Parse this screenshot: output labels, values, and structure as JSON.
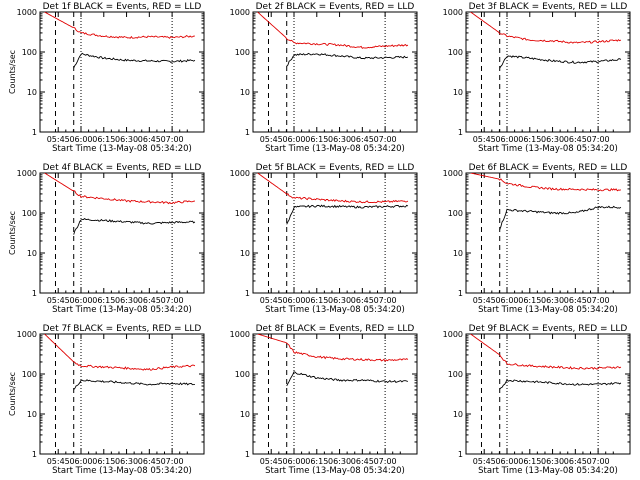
{
  "figure": {
    "ylabel": "Counts/sec",
    "xlabel": "Start Time (13-May-08 05:34:20)",
    "xticks": [
      "05:45",
      "06:00",
      "06:15",
      "06:30",
      "06:45",
      "07:00"
    ],
    "yticks": [
      "1",
      "10",
      "100",
      "1000"
    ],
    "colors": {
      "events": "#000000",
      "lld": "#e00000"
    }
  },
  "chart_data": [
    {
      "type": "line",
      "title": "Det 1f BLACK = Events, RED = LLD",
      "yscale": "log",
      "ylim": [
        1,
        1000
      ],
      "xlabel": "Start Time (13-May-08 05:34:20)",
      "ylabel": "Counts/sec",
      "series": [
        {
          "name": "Events",
          "color": "#000000",
          "x": [
            5.92,
            6.0,
            6.25,
            6.5,
            6.75,
            7.0,
            7.25
          ],
          "y": [
            40,
            90,
            70,
            62,
            60,
            58,
            62
          ]
        },
        {
          "name": "LLD",
          "color": "#e00000",
          "x": [
            5.6,
            5.92,
            6.0,
            6.25,
            6.5,
            6.75,
            7.0,
            7.25
          ],
          "y": [
            1000,
            400,
            300,
            250,
            230,
            240,
            230,
            250
          ]
        }
      ]
    },
    {
      "type": "line",
      "title": "Det 2f BLACK = Events, RED = LLD",
      "yscale": "log",
      "ylim": [
        1,
        1000
      ],
      "xlabel": "Start Time (13-May-08 05:34:20)",
      "ylabel": "Counts/sec",
      "series": [
        {
          "name": "Events",
          "color": "#000000",
          "x": [
            5.92,
            6.0,
            6.25,
            6.5,
            6.75,
            7.0,
            7.25
          ],
          "y": [
            45,
            85,
            90,
            80,
            70,
            72,
            75
          ]
        },
        {
          "name": "LLD",
          "color": "#e00000",
          "x": [
            5.6,
            5.92,
            6.0,
            6.25,
            6.5,
            6.75,
            7.0,
            7.25
          ],
          "y": [
            1000,
            220,
            170,
            160,
            150,
            130,
            140,
            150
          ]
        }
      ]
    },
    {
      "type": "line",
      "title": "Det 3f BLACK = Events, RED = LLD",
      "yscale": "log",
      "ylim": [
        1,
        1000
      ],
      "xlabel": "Start Time (13-May-08 05:34:20)",
      "ylabel": "Counts/sec",
      "series": [
        {
          "name": "Events",
          "color": "#000000",
          "x": [
            5.92,
            6.0,
            6.25,
            6.5,
            6.75,
            7.0,
            7.25
          ],
          "y": [
            40,
            80,
            70,
            60,
            55,
            58,
            65
          ]
        },
        {
          "name": "LLD",
          "color": "#e00000",
          "x": [
            5.6,
            5.92,
            6.0,
            6.25,
            6.5,
            6.75,
            7.0,
            7.25
          ],
          "y": [
            1000,
            300,
            250,
            200,
            190,
            170,
            180,
            200
          ]
        }
      ]
    },
    {
      "type": "line",
      "title": "Det 4f BLACK = Events, RED = LLD",
      "yscale": "log",
      "ylim": [
        1,
        1000
      ],
      "xlabel": "Start Time (13-May-08 05:34:20)",
      "ylabel": "Counts/sec",
      "series": [
        {
          "name": "Events",
          "color": "#000000",
          "x": [
            5.92,
            6.0,
            6.25,
            6.5,
            6.75,
            7.0,
            7.25
          ],
          "y": [
            30,
            70,
            65,
            60,
            55,
            58,
            60
          ]
        },
        {
          "name": "LLD",
          "color": "#e00000",
          "x": [
            5.6,
            5.92,
            6.0,
            6.25,
            6.5,
            6.75,
            7.0,
            7.25
          ],
          "y": [
            1000,
            350,
            260,
            230,
            200,
            190,
            180,
            200
          ]
        }
      ]
    },
    {
      "type": "line",
      "title": "Det 5f BLACK = Events, RED = LLD",
      "yscale": "log",
      "ylim": [
        1,
        1000
      ],
      "xlabel": "Start Time (13-May-08 05:34:20)",
      "ylabel": "Counts/sec",
      "series": [
        {
          "name": "Events",
          "color": "#000000",
          "x": [
            5.92,
            6.0,
            6.25,
            6.5,
            6.75,
            7.0,
            7.25
          ],
          "y": [
            50,
            140,
            150,
            145,
            140,
            145,
            150
          ]
        },
        {
          "name": "LLD",
          "color": "#e00000",
          "x": [
            5.6,
            5.92,
            6.0,
            6.25,
            6.5,
            6.75,
            7.0,
            7.25
          ],
          "y": [
            1000,
            300,
            240,
            220,
            200,
            190,
            190,
            200
          ]
        }
      ]
    },
    {
      "type": "line",
      "title": "Det 6f BLACK = Events, RED = LLD",
      "yscale": "log",
      "ylim": [
        1,
        1000
      ],
      "xlabel": "Start Time (13-May-08 05:34:20)",
      "ylabel": "Counts/sec",
      "series": [
        {
          "name": "Events",
          "color": "#000000",
          "x": [
            5.92,
            6.0,
            6.25,
            6.5,
            6.75,
            7.0,
            7.25
          ],
          "y": [
            40,
            120,
            110,
            100,
            100,
            140,
            140
          ]
        },
        {
          "name": "LLD",
          "color": "#e00000",
          "x": [
            5.6,
            5.92,
            6.0,
            6.25,
            6.5,
            6.75,
            7.0,
            7.25
          ],
          "y": [
            1000,
            700,
            550,
            450,
            400,
            390,
            380,
            380
          ]
        }
      ]
    },
    {
      "type": "line",
      "title": "Det 7f BLACK = Events, RED = LLD",
      "yscale": "log",
      "ylim": [
        1,
        1000
      ],
      "xlabel": "Start Time (13-May-08 05:34:20)",
      "ylabel": "Counts/sec",
      "series": [
        {
          "name": "Events",
          "color": "#000000",
          "x": [
            5.92,
            6.0,
            6.25,
            6.5,
            6.75,
            7.0,
            7.25
          ],
          "y": [
            40,
            70,
            65,
            60,
            55,
            58,
            55
          ]
        },
        {
          "name": "LLD",
          "color": "#e00000",
          "x": [
            5.6,
            5.92,
            6.0,
            6.25,
            6.5,
            6.75,
            7.0,
            7.25
          ],
          "y": [
            1000,
            200,
            160,
            150,
            140,
            130,
            150,
            160
          ]
        }
      ]
    },
    {
      "type": "line",
      "title": "Det 8f BLACK = Events, RED = LLD",
      "yscale": "log",
      "ylim": [
        1,
        1000
      ],
      "xlabel": "Start Time (13-May-08 05:34:20)",
      "ylabel": "Counts/sec",
      "series": [
        {
          "name": "Events",
          "color": "#000000",
          "x": [
            5.92,
            6.0,
            6.25,
            6.5,
            6.75,
            7.0,
            7.25
          ],
          "y": [
            50,
            110,
            80,
            70,
            70,
            65,
            65
          ]
        },
        {
          "name": "LLD",
          "color": "#e00000",
          "x": [
            5.6,
            5.92,
            6.0,
            6.25,
            6.5,
            6.75,
            7.0,
            7.25
          ],
          "y": [
            1000,
            600,
            350,
            270,
            240,
            230,
            220,
            230
          ]
        }
      ]
    },
    {
      "type": "line",
      "title": "Det 9f BLACK = Events, RED = LLD",
      "yscale": "log",
      "ylim": [
        1,
        1000
      ],
      "xlabel": "Start Time (13-May-08 05:34:20)",
      "ylabel": "Counts/sec",
      "series": [
        {
          "name": "Events",
          "color": "#000000",
          "x": [
            5.92,
            6.0,
            6.25,
            6.5,
            6.75,
            7.0,
            7.25
          ],
          "y": [
            40,
            70,
            65,
            60,
            55,
            55,
            60
          ]
        },
        {
          "name": "LLD",
          "color": "#e00000",
          "x": [
            5.6,
            5.92,
            6.0,
            6.25,
            6.5,
            6.75,
            7.0,
            7.25
          ],
          "y": [
            1000,
            300,
            180,
            160,
            150,
            140,
            140,
            150
          ]
        }
      ]
    }
  ]
}
